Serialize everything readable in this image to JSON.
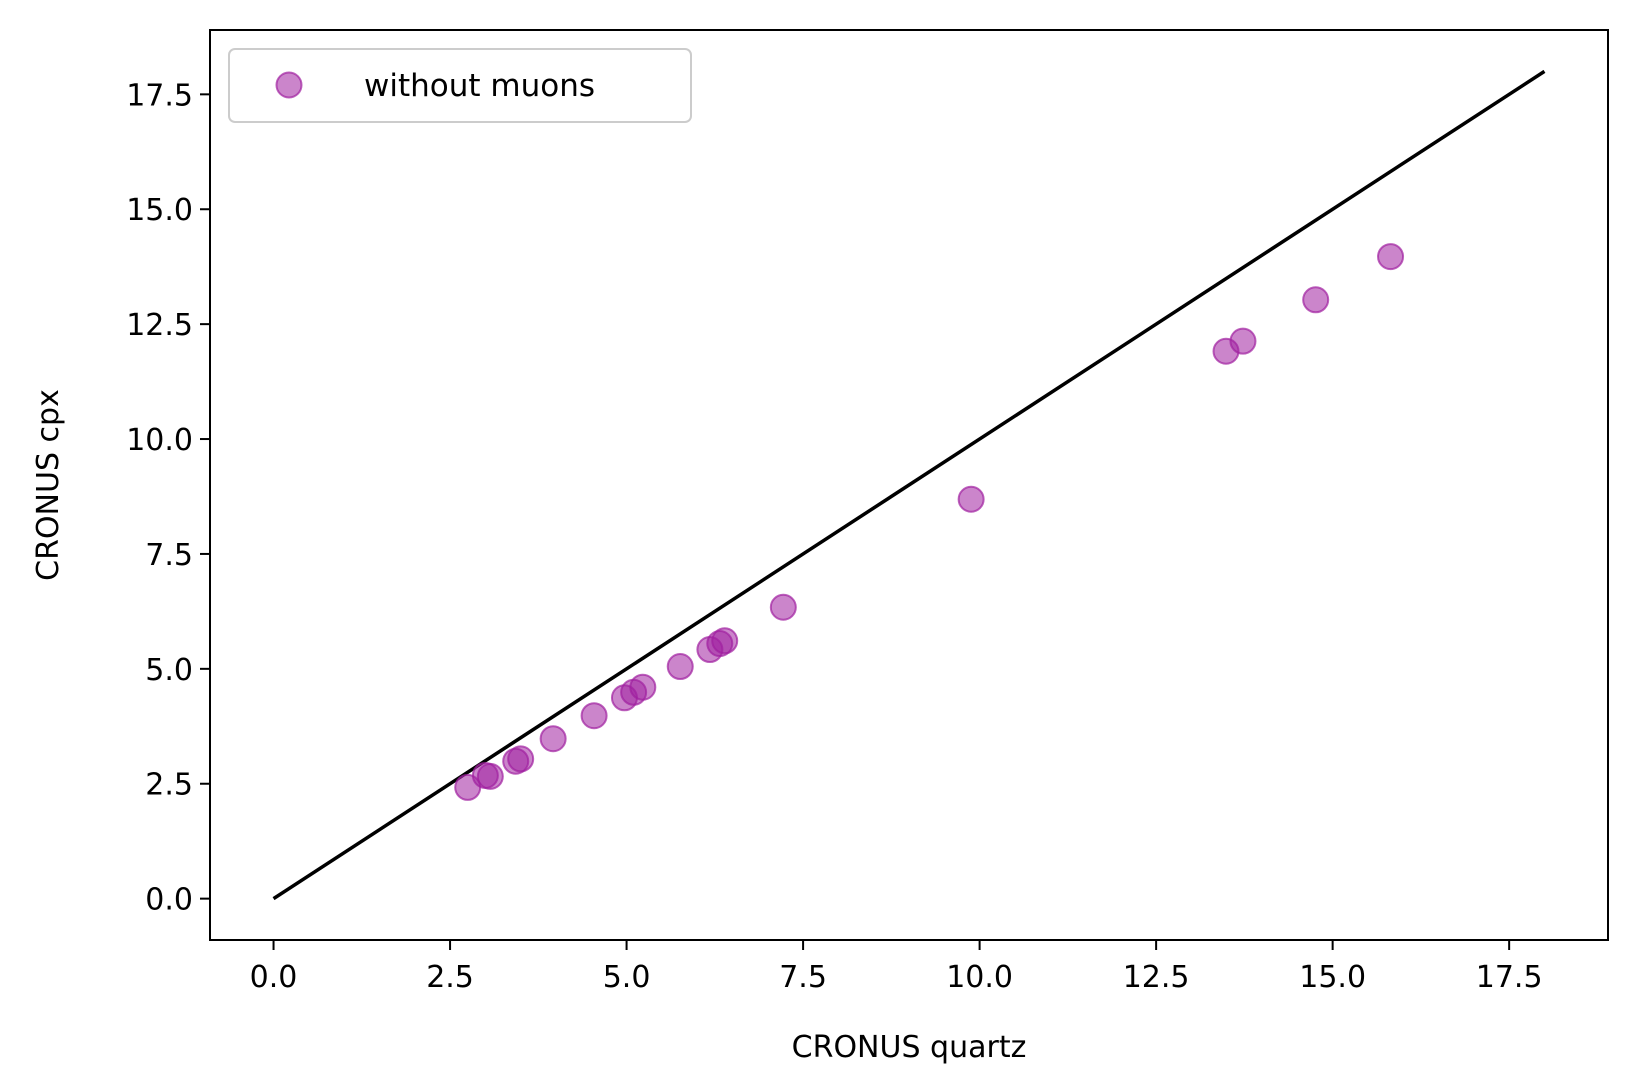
{
  "chart_data": {
    "type": "scatter",
    "xlabel": "CRONUS quartz",
    "ylabel": "CRONUS cpx",
    "xlim": [
      -0.9,
      18.9
    ],
    "ylim": [
      -0.9,
      18.9
    ],
    "x_ticks": [
      0.0,
      2.5,
      5.0,
      7.5,
      10.0,
      12.5,
      15.0,
      17.5
    ],
    "y_ticks": [
      0.0,
      2.5,
      5.0,
      7.5,
      10.0,
      12.5,
      15.0,
      17.5
    ],
    "x_tick_labels": [
      "0.0",
      "2.5",
      "5.0",
      "7.5",
      "10.0",
      "12.5",
      "15.0",
      "17.5"
    ],
    "y_tick_labels": [
      "0.0",
      "2.5",
      "5.0",
      "7.5",
      "10.0",
      "12.5",
      "15.0",
      "17.5"
    ],
    "grid": false,
    "legend_position": "top-left",
    "series": [
      {
        "name": "without muons",
        "marker": "circle",
        "color": "#a020a0",
        "opacity": 0.55,
        "points": [
          {
            "x": 2.75,
            "y": 2.42
          },
          {
            "x": 3.0,
            "y": 2.68
          },
          {
            "x": 3.07,
            "y": 2.66
          },
          {
            "x": 3.43,
            "y": 2.99
          },
          {
            "x": 3.5,
            "y": 3.04
          },
          {
            "x": 3.96,
            "y": 3.48
          },
          {
            "x": 4.54,
            "y": 3.98
          },
          {
            "x": 4.97,
            "y": 4.37
          },
          {
            "x": 5.1,
            "y": 4.49
          },
          {
            "x": 5.23,
            "y": 4.6
          },
          {
            "x": 5.76,
            "y": 5.05
          },
          {
            "x": 6.18,
            "y": 5.42
          },
          {
            "x": 6.32,
            "y": 5.55
          },
          {
            "x": 6.39,
            "y": 5.61
          },
          {
            "x": 7.22,
            "y": 6.34
          },
          {
            "x": 9.88,
            "y": 8.69
          },
          {
            "x": 13.49,
            "y": 11.91
          },
          {
            "x": 13.73,
            "y": 12.13
          },
          {
            "x": 14.76,
            "y": 13.03
          },
          {
            "x": 15.82,
            "y": 13.97
          }
        ]
      },
      {
        "type": "line",
        "color": "#000000",
        "points": [
          {
            "x": 0.0,
            "y": 0.0
          },
          {
            "x": 18.0,
            "y": 18.0
          }
        ]
      }
    ]
  }
}
